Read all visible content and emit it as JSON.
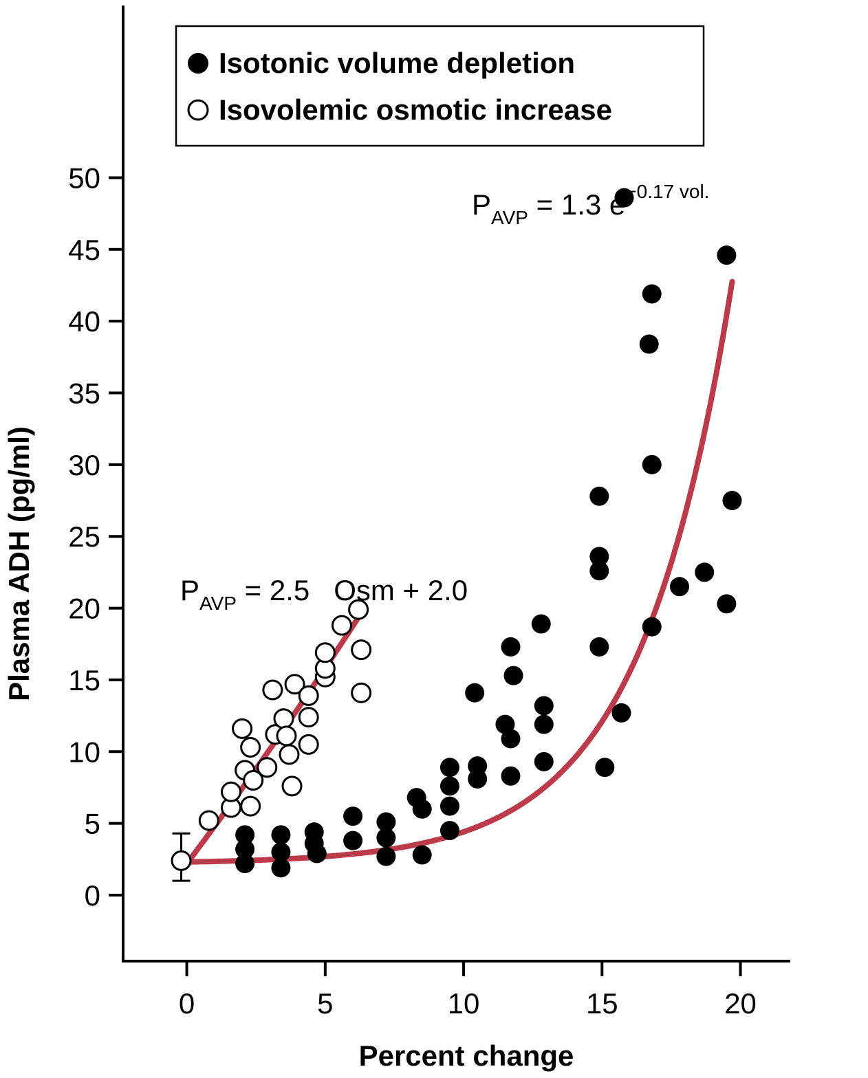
{
  "chart_data": {
    "type": "scatter",
    "xlabel": "Percent change",
    "ylabel": "Plasma ADH (pg/ml)",
    "xlim": [
      -2.3,
      21.8
    ],
    "ylim": [
      -4.6,
      62
    ],
    "x_ticks": [
      0,
      5,
      10,
      15,
      20
    ],
    "y_ticks": [
      0,
      5,
      10,
      15,
      20,
      25,
      30,
      35,
      40,
      45,
      50
    ],
    "grid": false,
    "legend_position": "top-left",
    "colors": {
      "curve": "#bb3b4a",
      "marker_filled": "#000000",
      "marker_open_fill": "#ffffff"
    },
    "legend": [
      {
        "marker": "filled-circle",
        "label": "Isotonic volume depletion"
      },
      {
        "marker": "open-circle",
        "label": "Isovolemic osmotic increase"
      }
    ],
    "annotations": [
      {
        "base": "P",
        "sub": "AVP",
        "text": " = 1.3 e",
        "sup": "−0.17 vol."
      },
      {
        "base": "P",
        "sub": "AVP",
        "text": " = 2.5   Osm + 2.0"
      }
    ],
    "series": [
      {
        "label": "Isotonic volume depletion",
        "marker": "filled",
        "points": [
          [
            2.1,
            4.2
          ],
          [
            2.1,
            3.2
          ],
          [
            2.1,
            2.2
          ],
          [
            3.4,
            4.2
          ],
          [
            3.4,
            3.0
          ],
          [
            3.4,
            1.9
          ],
          [
            4.6,
            4.4
          ],
          [
            4.6,
            3.6
          ],
          [
            4.7,
            2.9
          ],
          [
            6.0,
            5.5
          ],
          [
            6.0,
            3.8
          ],
          [
            7.2,
            5.1
          ],
          [
            7.2,
            4.0
          ],
          [
            7.2,
            2.7
          ],
          [
            8.3,
            6.8
          ],
          [
            8.5,
            6.0
          ],
          [
            8.5,
            2.8
          ],
          [
            9.5,
            8.9
          ],
          [
            9.5,
            7.6
          ],
          [
            9.5,
            6.2
          ],
          [
            9.5,
            4.5
          ],
          [
            10.4,
            14.1
          ],
          [
            10.5,
            9.0
          ],
          [
            10.5,
            8.1
          ],
          [
            11.5,
            11.9
          ],
          [
            11.7,
            17.3
          ],
          [
            11.7,
            10.9
          ],
          [
            11.7,
            8.3
          ],
          [
            11.8,
            15.3
          ],
          [
            12.8,
            18.9
          ],
          [
            12.9,
            13.2
          ],
          [
            12.9,
            11.9
          ],
          [
            12.9,
            9.3
          ],
          [
            14.9,
            27.8
          ],
          [
            14.9,
            23.6
          ],
          [
            14.9,
            22.6
          ],
          [
            14.9,
            17.3
          ],
          [
            15.1,
            8.9
          ],
          [
            15.7,
            12.7
          ],
          [
            15.8,
            48.6
          ],
          [
            16.7,
            38.4
          ],
          [
            16.8,
            41.9
          ],
          [
            16.8,
            30.0
          ],
          [
            16.8,
            18.7
          ],
          [
            17.8,
            21.5
          ],
          [
            18.7,
            22.5
          ],
          [
            19.5,
            44.6
          ],
          [
            19.5,
            20.3
          ],
          [
            19.7,
            27.5
          ]
        ]
      },
      {
        "label": "Isovolemic osmotic increase",
        "marker": "open",
        "points": [
          [
            -0.2,
            2.4
          ],
          [
            0.8,
            5.2
          ],
          [
            1.6,
            6.1
          ],
          [
            1.6,
            7.2
          ],
          [
            2.0,
            11.6
          ],
          [
            2.1,
            8.7
          ],
          [
            2.3,
            10.3
          ],
          [
            2.3,
            6.2
          ],
          [
            2.4,
            8.0
          ],
          [
            2.9,
            8.9
          ],
          [
            3.1,
            14.3
          ],
          [
            3.2,
            11.2
          ],
          [
            3.5,
            12.3
          ],
          [
            3.6,
            11.1
          ],
          [
            3.7,
            9.8
          ],
          [
            3.8,
            7.6
          ],
          [
            3.9,
            14.7
          ],
          [
            4.4,
            13.9
          ],
          [
            4.4,
            12.4
          ],
          [
            4.4,
            10.5
          ],
          [
            5.0,
            15.2
          ],
          [
            5.0,
            15.8
          ],
          [
            5.0,
            16.9
          ],
          [
            5.6,
            18.8
          ],
          [
            6.2,
            19.9
          ],
          [
            6.3,
            17.1
          ],
          [
            6.3,
            14.1
          ]
        ]
      }
    ],
    "error_bar": {
      "x": -0.2,
      "y": 2.4,
      "low": 1.0,
      "high": 4.3
    },
    "fit_curves": [
      {
        "label": "P_AVP = 1.3 e^−0.17 vol.",
        "x_range": [
          0,
          19.7
        ]
      },
      {
        "label": "P_AVP = 2.5 Osm + 2.0",
        "x_range": [
          0,
          6.4
        ]
      }
    ]
  }
}
